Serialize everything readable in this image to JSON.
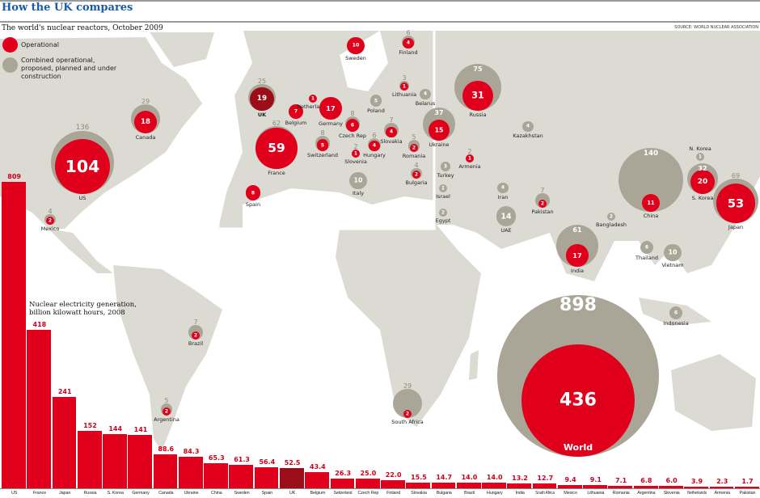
{
  "header": {
    "title": "How the UK compares",
    "subtitle": "The world's nuclear reactors, October 2009",
    "source": "SOURCE: WORLD NUCLEAR ASSOCIATION"
  },
  "legend": {
    "operational": "Operational",
    "combined": "Combined operational, proposed, planned and under construction"
  },
  "colors": {
    "operational": "#e0001b",
    "combined": "#a9a697",
    "uk": "#9b0d18",
    "land": "#dcdbd3",
    "title": "#1a5aa6"
  },
  "chart_data": [
    {
      "type": "bubble-map",
      "title": "The world's nuclear reactors, October 2009",
      "series": [
        "Operational",
        "Combined operational, proposed, planned and under construction"
      ],
      "points": [
        {
          "name": "US",
          "operational": 104,
          "combined": 136
        },
        {
          "name": "Canada",
          "operational": 18,
          "combined": 29
        },
        {
          "name": "Mexico",
          "operational": 2,
          "combined": 4
        },
        {
          "name": "Brazil",
          "operational": 2,
          "combined": 7
        },
        {
          "name": "Argentina",
          "operational": 2,
          "combined": 5
        },
        {
          "name": "South Africa",
          "operational": 2,
          "combined": 29
        },
        {
          "name": "UK",
          "operational": 19,
          "combined": 25
        },
        {
          "name": "France",
          "operational": 59,
          "combined": 62
        },
        {
          "name": "Spain",
          "operational": 8,
          "combined": 8
        },
        {
          "name": "Belgium",
          "operational": 7,
          "combined": 7
        },
        {
          "name": "Netherlands",
          "operational": 1,
          "combined": 1
        },
        {
          "name": "Germany",
          "operational": 17,
          "combined": 17
        },
        {
          "name": "Czech Rep",
          "operational": 6,
          "combined": 8
        },
        {
          "name": "Switzerland",
          "operational": 5,
          "combined": 8
        },
        {
          "name": "Slovenia",
          "operational": 1,
          "combined": 2
        },
        {
          "name": "Hungary",
          "operational": 4,
          "combined": 6
        },
        {
          "name": "Slovakia",
          "operational": 4,
          "combined": 7
        },
        {
          "name": "Poland",
          "operational": 0,
          "combined": 5
        },
        {
          "name": "Lithuania",
          "operational": 1,
          "combined": 3
        },
        {
          "name": "Belarus",
          "operational": 0,
          "combined": 4
        },
        {
          "name": "Sweden",
          "operational": 10,
          "combined": 10
        },
        {
          "name": "Finland",
          "operational": 4,
          "combined": 6
        },
        {
          "name": "Italy",
          "operational": 0,
          "combined": 10
        },
        {
          "name": "Romania",
          "operational": 2,
          "combined": 5
        },
        {
          "name": "Bulgaria",
          "operational": 2,
          "combined": 4
        },
        {
          "name": "Ukraine",
          "operational": 15,
          "combined": 37
        },
        {
          "name": "Russia",
          "operational": 31,
          "combined": 75
        },
        {
          "name": "Turkey",
          "operational": 0,
          "combined": 3
        },
        {
          "name": "Israel",
          "operational": 0,
          "combined": 1
        },
        {
          "name": "Egypt",
          "operational": 0,
          "combined": 2
        },
        {
          "name": "Armenia",
          "operational": 1,
          "combined": 2
        },
        {
          "name": "Kazakhstan",
          "operational": 0,
          "combined": 4
        },
        {
          "name": "Iran",
          "operational": 0,
          "combined": 4
        },
        {
          "name": "Pakistan",
          "operational": 2,
          "combined": 7
        },
        {
          "name": "UAE",
          "operational": 0,
          "combined": 14
        },
        {
          "name": "India",
          "operational": 17,
          "combined": 61
        },
        {
          "name": "Bangladesh",
          "operational": 0,
          "combined": 2
        },
        {
          "name": "China",
          "operational": 11,
          "combined": 140
        },
        {
          "name": "N. Korea",
          "operational": 0,
          "combined": 1
        },
        {
          "name": "S. Korea",
          "operational": 20,
          "combined": 32
        },
        {
          "name": "Japan",
          "operational": 53,
          "combined": 69
        },
        {
          "name": "Thailand",
          "operational": 0,
          "combined": 6
        },
        {
          "name": "Vietnam",
          "operational": 0,
          "combined": 10
        },
        {
          "name": "Indonesia",
          "operational": 0,
          "combined": 6
        },
        {
          "name": "World",
          "operational": 436,
          "combined": 898
        }
      ]
    },
    {
      "type": "bar",
      "title": "Nuclear electricity generation, billion kilowatt hours, 2008",
      "ylabel": "billion kWh",
      "ylim": [
        0,
        809
      ],
      "categories": [
        "US",
        "France",
        "Japan",
        "Russia",
        "S. Korea",
        "Germany",
        "Canada",
        "Ukraine",
        "China",
        "Sweden",
        "Spain",
        "UK",
        "Belgium",
        "Switzerland",
        "Czech Rep",
        "Finland",
        "Slovakia",
        "Bulgaria",
        "Brazil",
        "Hungary",
        "India",
        "South Africa",
        "Mexico",
        "Lithuania",
        "Romania",
        "Argentina",
        "Slovenia",
        "Netherlands",
        "Armenia",
        "Pakistan"
      ],
      "values": [
        "809",
        "418",
        "241",
        "152",
        "144",
        "141",
        "88.6",
        "84.3",
        "65.3",
        "61.3",
        "56.4",
        "52.5",
        "43.4",
        "26.3",
        "25.0",
        "22.0",
        "15.5",
        "14.7",
        "14.0",
        "14.0",
        "13.2",
        "12.7",
        "9.4",
        "9.1",
        "7.1",
        "6.8",
        "6.0",
        "3.9",
        "2.3",
        "1.7"
      ],
      "highlight": "UK"
    }
  ]
}
